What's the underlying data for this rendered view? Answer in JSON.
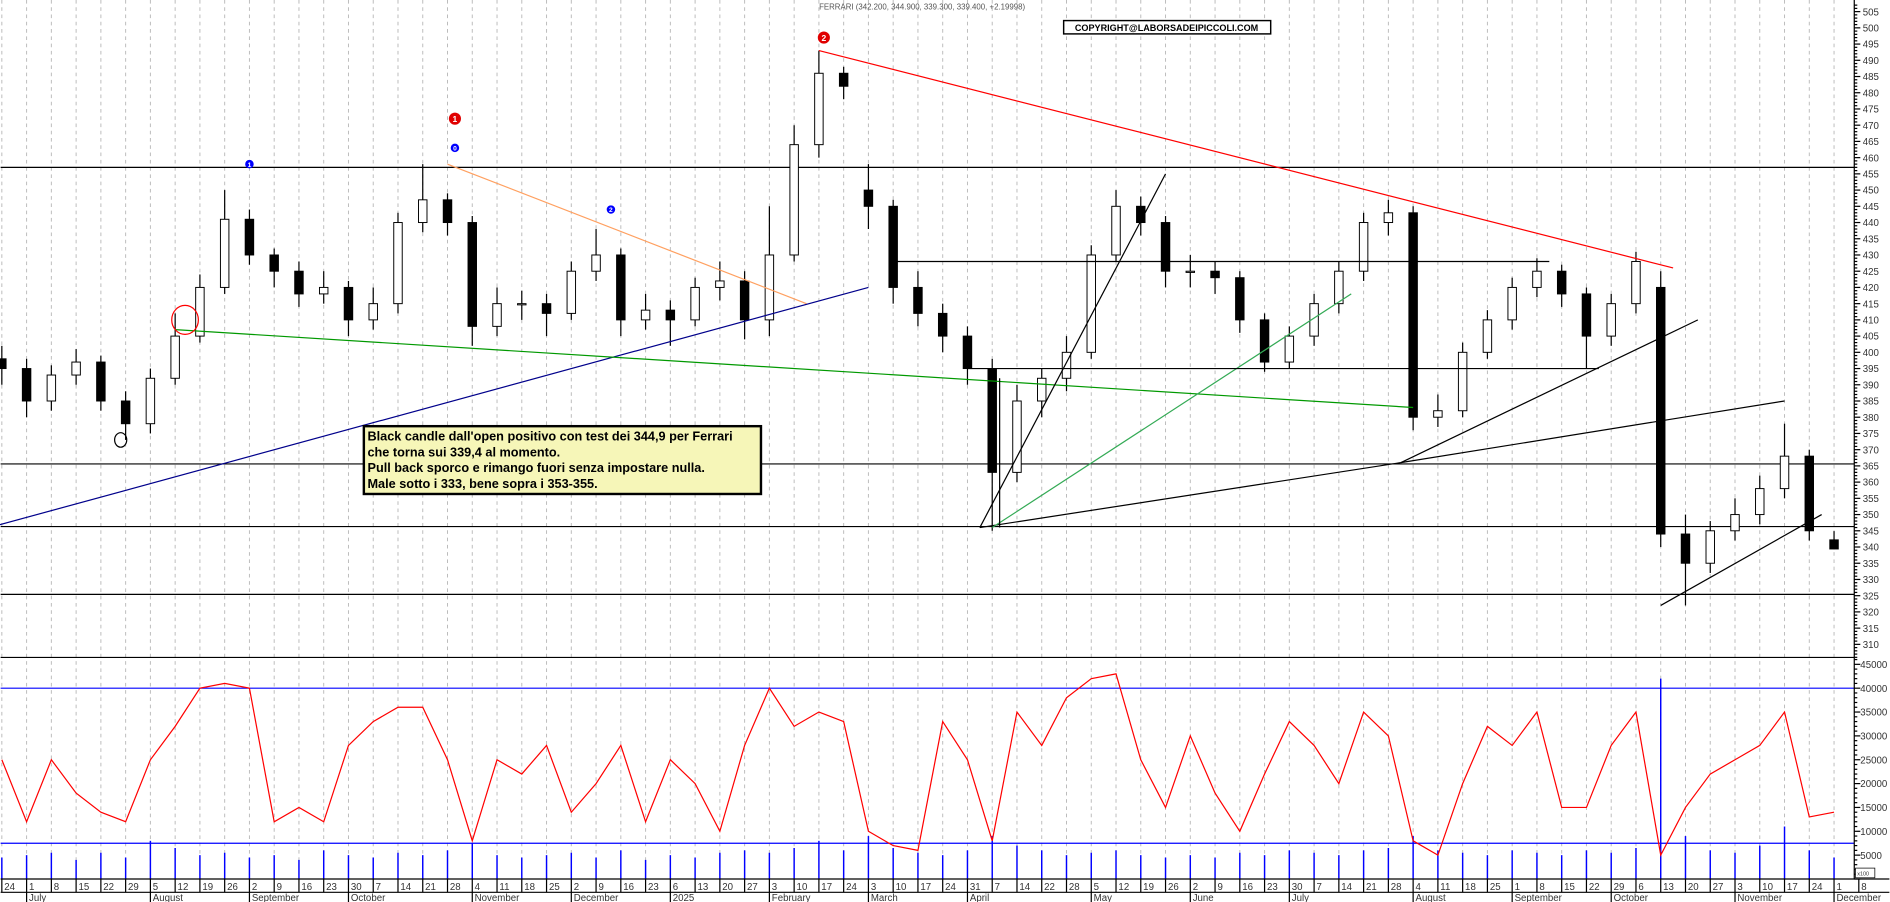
{
  "title": "FERRARI (342.200, 344.900, 339.300, 339.400, +2.19998)",
  "copyright": "COPYRIGHT@LABORSADEIPICCOLI.COM",
  "annotation": {
    "lines": [
      "Black candle dall'open positivo con test dei 344,9 per Ferrari",
      "che torna sui 339,4 al momento.",
      "Pull back sporco e rimango fuori senza impostare nulla.",
      "Male sotto i 333, bene sopra i 353-355."
    ]
  },
  "chart_data": {
    "type": "candlestick",
    "colors": {
      "up_body": "#ffffff",
      "down_body": "#000000",
      "volume_line": "#ff0000",
      "volume_bars": "#0000ff",
      "levels": "#000000",
      "volume_levels": "#0000ff"
    },
    "price_ticks": [
      505,
      500,
      495,
      490,
      485,
      480,
      475,
      470,
      465,
      460,
      455,
      450,
      445,
      440,
      435,
      430,
      425,
      420,
      415,
      410,
      405,
      400,
      395,
      390,
      385,
      380,
      375,
      370,
      365,
      360,
      355,
      350,
      345,
      340,
      335,
      330,
      325,
      320,
      315,
      310
    ],
    "volume_ticks": [
      45000,
      40000,
      35000,
      30000,
      25000,
      20000,
      15000,
      10000,
      5000
    ],
    "volume_unit": "x100",
    "x_ticks": [
      "24",
      "1",
      "8",
      "15",
      "22",
      "29",
      "5",
      "12",
      "19",
      "26",
      "2",
      "9",
      "16",
      "23",
      "30",
      "7",
      "14",
      "21",
      "28",
      "4",
      "11",
      "18",
      "25",
      "2",
      "9",
      "16",
      "23",
      "6",
      "13",
      "20",
      "27",
      "3",
      "10",
      "17",
      "24",
      "3",
      "10",
      "17",
      "24",
      "31",
      "7",
      "14",
      "22",
      "28",
      "5",
      "12",
      "19",
      "26",
      "2",
      "9",
      "16",
      "23",
      "30",
      "7",
      "14",
      "21",
      "28",
      "4",
      "11",
      "18",
      "25",
      "1",
      "8",
      "15",
      "22",
      "29",
      "6",
      "13",
      "20",
      "27",
      "3",
      "10",
      "17",
      "24",
      "1",
      "8"
    ],
    "months": [
      {
        "label": "July",
        "tick": 1
      },
      {
        "label": "August",
        "tick": 6
      },
      {
        "label": "September",
        "tick": 10
      },
      {
        "label": "October",
        "tick": 14
      },
      {
        "label": "November",
        "tick": 19
      },
      {
        "label": "December",
        "tick": 23
      },
      {
        "label": "2025",
        "tick": 27
      },
      {
        "label": "February",
        "tick": 31
      },
      {
        "label": "March",
        "tick": 35
      },
      {
        "label": "April",
        "tick": 39
      },
      {
        "label": "May",
        "tick": 44
      },
      {
        "label": "June",
        "tick": 48
      },
      {
        "label": "July",
        "tick": 52
      },
      {
        "label": "August",
        "tick": 57
      },
      {
        "label": "September",
        "tick": 61
      },
      {
        "label": "October",
        "tick": 65
      },
      {
        "label": "November",
        "tick": 70
      },
      {
        "label": "December",
        "tick": 74
      }
    ],
    "ohlc": [
      [
        398,
        402,
        390,
        395
      ],
      [
        395,
        398,
        380,
        385
      ],
      [
        385,
        396,
        382,
        393
      ],
      [
        393,
        401,
        390,
        397
      ],
      [
        397,
        399,
        382,
        385
      ],
      [
        385,
        388,
        373,
        378
      ],
      [
        378,
        395,
        375,
        392
      ],
      [
        392,
        412,
        390,
        405
      ],
      [
        405,
        424,
        403,
        420
      ],
      [
        420,
        450,
        418,
        441
      ],
      [
        441,
        444,
        427,
        430
      ],
      [
        430,
        432,
        420,
        425
      ],
      [
        425,
        428,
        414,
        418
      ],
      [
        418,
        425,
        415,
        420
      ],
      [
        420,
        422,
        405,
        410
      ],
      [
        410,
        420,
        407,
        415
      ],
      [
        415,
        443,
        412,
        440
      ],
      [
        440,
        458,
        437,
        447
      ],
      [
        447,
        449,
        436,
        440
      ],
      [
        440,
        442,
        402,
        408
      ],
      [
        408,
        420,
        405,
        415
      ],
      [
        415,
        419,
        410,
        415
      ],
      [
        415,
        418,
        405,
        412
      ],
      [
        412,
        428,
        410,
        425
      ],
      [
        425,
        438,
        422,
        430
      ],
      [
        430,
        432,
        405,
        410
      ],
      [
        410,
        418,
        407,
        413
      ],
      [
        413,
        416,
        402,
        410
      ],
      [
        410,
        423,
        408,
        420
      ],
      [
        420,
        428,
        416,
        422
      ],
      [
        422,
        425,
        404,
        410
      ],
      [
        410,
        445,
        405,
        430
      ],
      [
        430,
        470,
        428,
        464
      ],
      [
        464,
        493,
        460,
        486
      ],
      [
        486,
        488,
        478,
        482
      ],
      [
        450,
        458,
        438,
        445
      ],
      [
        445,
        447,
        415,
        420
      ],
      [
        420,
        425,
        408,
        412
      ],
      [
        412,
        415,
        400,
        405
      ],
      [
        405,
        408,
        390,
        395
      ],
      [
        395,
        398,
        345,
        363
      ],
      [
        363,
        390,
        360,
        385
      ],
      [
        385,
        395,
        380,
        392
      ],
      [
        392,
        405,
        388,
        400
      ],
      [
        400,
        433,
        398,
        430
      ],
      [
        430,
        450,
        428,
        445
      ],
      [
        445,
        448,
        436,
        440
      ],
      [
        440,
        442,
        420,
        425
      ],
      [
        425,
        430,
        420,
        425
      ],
      [
        425,
        428,
        418,
        423
      ],
      [
        423,
        425,
        406,
        410
      ],
      [
        410,
        412,
        394,
        397
      ],
      [
        397,
        408,
        395,
        405
      ],
      [
        405,
        418,
        402,
        415
      ],
      [
        415,
        428,
        412,
        425
      ],
      [
        425,
        443,
        422,
        440
      ],
      [
        440,
        447,
        436,
        443
      ],
      [
        443,
        445,
        376,
        380
      ],
      [
        380,
        387,
        377,
        382
      ],
      [
        382,
        403,
        380,
        400
      ],
      [
        400,
        413,
        398,
        410
      ],
      [
        410,
        423,
        407,
        420
      ],
      [
        420,
        429,
        417,
        425
      ],
      [
        425,
        427,
        414,
        418
      ],
      [
        418,
        420,
        395,
        405
      ],
      [
        405,
        418,
        402,
        415
      ],
      [
        415,
        431,
        412,
        428
      ],
      [
        420,
        425,
        340,
        344
      ],
      [
        344,
        350,
        322,
        335
      ],
      [
        335,
        348,
        332,
        345
      ],
      [
        345,
        355,
        342,
        350
      ],
      [
        350,
        362,
        347,
        358
      ],
      [
        358,
        378,
        355,
        368
      ],
      [
        368,
        370,
        342,
        345
      ],
      [
        342.2,
        344.9,
        339.3,
        339.4
      ]
    ],
    "volume_line": [
      25000,
      12000,
      25000,
      18000,
      14000,
      12000,
      25000,
      32000,
      40000,
      41000,
      40000,
      12000,
      15000,
      12000,
      28000,
      33000,
      36000,
      36000,
      25000,
      8000,
      25000,
      22000,
      28000,
      14000,
      20000,
      28000,
      12000,
      25000,
      20000,
      10000,
      28000,
      40000,
      32000,
      35000,
      33000,
      10000,
      7000,
      6000,
      33000,
      25000,
      8000,
      35000,
      28000,
      38000,
      42000,
      43000,
      25000,
      15000,
      30000,
      18000,
      10000,
      22000,
      33000,
      28000,
      20000,
      35000,
      30000,
      8000,
      5000,
      20000,
      32000,
      28000,
      35000,
      15000,
      15000,
      28000,
      35000,
      5000,
      15000,
      22000,
      25000,
      28000,
      35000,
      13000,
      14000
    ],
    "volume_bars": [
      4500,
      5000,
      5500,
      4000,
      5500,
      4500,
      8000,
      6500,
      5000,
      5500,
      4500,
      5000,
      4000,
      6000,
      5000,
      4500,
      5500,
      5000,
      6000,
      7500,
      5000,
      4500,
      5000,
      5500,
      4500,
      6000,
      4000,
      5000,
      4500,
      5500,
      6000,
      5500,
      6500,
      8000,
      6000,
      9000,
      6500,
      5500,
      5000,
      6000,
      9000,
      7000,
      6000,
      5000,
      5500,
      6000,
      5000,
      4500,
      5000,
      4500,
      5500,
      5000,
      6000,
      5500,
      5000,
      6000,
      6500,
      9000,
      6000,
      5500,
      5000,
      6000,
      5500,
      5000,
      6000,
      5500,
      6500,
      42000,
      9000,
      6000,
      5500,
      7000,
      11000,
      6000,
      4500
    ],
    "price_levels": [
      457,
      365.6,
      346.3,
      325.4
    ],
    "volume_levels": [
      40000,
      7500
    ],
    "trendlines": [
      {
        "color": "#ff0000",
        "from": [
          33,
          493
        ],
        "to": [
          67.5,
          426
        ]
      },
      {
        "color": "#ffa060",
        "from": [
          18,
          458
        ],
        "to": [
          32.5,
          415
        ]
      },
      {
        "color": "#00008b",
        "from": [
          -0.5,
          346
        ],
        "to": [
          35,
          420
        ]
      },
      {
        "color": "#009900",
        "from": [
          7,
          407
        ],
        "to": [
          57,
          383
        ]
      },
      {
        "color": "#000000",
        "from": [
          39.5,
          346
        ],
        "to": [
          47,
          455
        ]
      },
      {
        "color": "#000000",
        "from": [
          39.5,
          346
        ],
        "to": [
          56.5,
          366
        ]
      },
      {
        "color": "#000000",
        "from": [
          56.5,
          366
        ],
        "to": [
          72,
          385
        ]
      },
      {
        "color": "#33aa55",
        "from": [
          40,
          346
        ],
        "to": [
          54.5,
          418
        ]
      },
      {
        "color": "#000000",
        "from": [
          36,
          428
        ],
        "to": [
          62.5,
          428
        ]
      },
      {
        "color": "#000000",
        "from": [
          39,
          395
        ],
        "to": [
          64.5,
          395
        ]
      },
      {
        "color": "#000000",
        "from": [
          56.5,
          366
        ],
        "to": [
          68.5,
          410
        ]
      },
      {
        "color": "#000000",
        "from": [
          67,
          322
        ],
        "to": [
          73.5,
          350
        ]
      },
      {
        "color": "#000000",
        "from": [
          40.3,
          346
        ],
        "to": [
          40.3,
          392
        ]
      }
    ],
    "circles": [
      {
        "color": "#ff0000",
        "week": 7.4,
        "price": 410
      },
      {
        "color": "#000000",
        "week": 4.8,
        "price": 373
      }
    ],
    "markers": [
      {
        "label": "1",
        "color": "#0000ff",
        "week": 10,
        "price": 458
      },
      {
        "label": "0",
        "color": "#0000ff",
        "week": 18.3,
        "price": 463
      },
      {
        "label": "1",
        "color": "#e00000",
        "week": 18.3,
        "price": 472
      },
      {
        "label": "2",
        "color": "#0000ff",
        "week": 24.6,
        "price": 444
      },
      {
        "label": "2",
        "color": "#e00000",
        "week": 33.2,
        "price": 497
      }
    ]
  }
}
